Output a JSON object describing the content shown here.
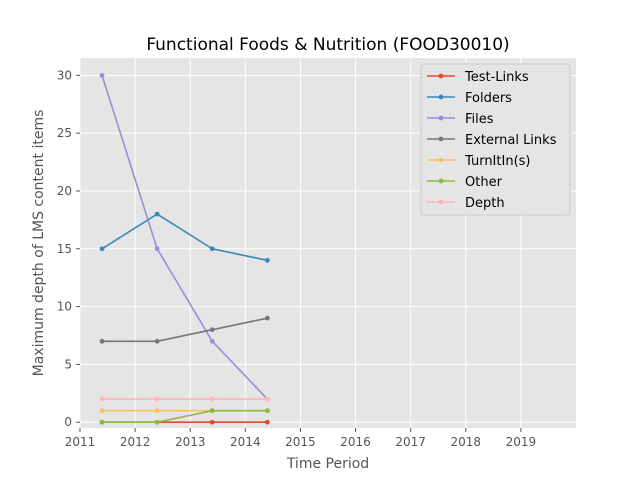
{
  "chart_data": {
    "type": "line",
    "title": "Functional Foods & Nutrition (FOOD30010)",
    "xlabel": "Time Period",
    "ylabel": "Maximum depth of LMS content items",
    "xlim": [
      2011,
      2020
    ],
    "ylim": [
      -0.5,
      31.5
    ],
    "x_ticks": [
      2011,
      2012,
      2013,
      2014,
      2015,
      2016,
      2017,
      2018,
      2019
    ],
    "y_ticks": [
      0,
      5,
      10,
      15,
      20,
      25,
      30
    ],
    "grid": true,
    "legend_position": "top-right",
    "x": [
      2011.4,
      2012.4,
      2013.4,
      2014.4
    ],
    "series": [
      {
        "name": "Test-Links",
        "color": "#E24A33",
        "values": [
          0,
          0,
          0,
          0
        ]
      },
      {
        "name": "Folders",
        "color": "#348ABD",
        "values": [
          15,
          18,
          15,
          14
        ]
      },
      {
        "name": "Files",
        "color": "#988ED5",
        "values": [
          30,
          15,
          7,
          2
        ]
      },
      {
        "name": "External Links",
        "color": "#777777",
        "values": [
          7,
          7,
          8,
          9
        ]
      },
      {
        "name": "TurnItIn(s)",
        "color": "#FBC15E",
        "values": [
          1,
          1,
          1,
          1
        ]
      },
      {
        "name": "Other",
        "color": "#8EBA42",
        "values": [
          0,
          0,
          1,
          1
        ]
      },
      {
        "name": "Depth",
        "color": "#FFB5B8",
        "values": [
          2,
          2,
          2,
          2
        ]
      }
    ]
  }
}
